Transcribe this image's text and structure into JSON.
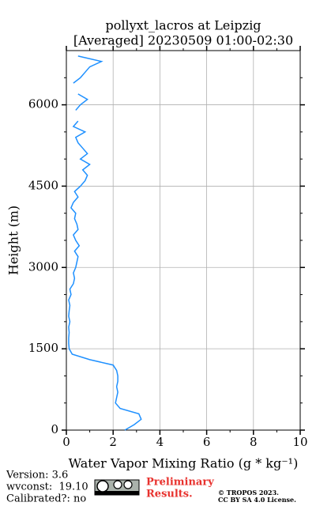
{
  "chart_data": {
    "type": "line",
    "title_line1": "pollyxt_lacros at Leipzig",
    "title_line2": "[Averaged] 20230509 01:00-02:30",
    "xlabel": "Water Vapor Mixing Ratio (g * kg⁻¹)",
    "ylabel": "Height (m)",
    "xlim": [
      0,
      10
    ],
    "xticks": [
      0,
      2,
      4,
      6,
      8,
      10
    ],
    "xminorticks": [
      1,
      3,
      5,
      7,
      9
    ],
    "ylim": [
      0,
      7000
    ],
    "yticks": [
      0,
      1500,
      3000,
      4500,
      6000
    ],
    "yminorticks": [
      500,
      1000,
      2000,
      2500,
      3500,
      4000,
      5000,
      5500,
      6500
    ],
    "grid": true,
    "heights": [
      0,
      100,
      200,
      300,
      400,
      500,
      600,
      700,
      800,
      900,
      1000,
      1100,
      1200,
      1300,
      1400,
      1500,
      1600,
      1700,
      1800,
      1900,
      2000,
      2100,
      2200,
      2300,
      2400,
      2500,
      2600,
      2700,
      2800,
      2900,
      3000,
      3100,
      3200,
      3300,
      3400,
      3500,
      3600,
      3700,
      3800,
      3900,
      4000,
      4100,
      4200,
      4300,
      4400,
      4500,
      4600,
      4700,
      4800,
      4900,
      5000,
      5100,
      5200,
      5300,
      5400,
      5500,
      5600,
      5700,
      5800,
      5900,
      6000,
      6100,
      6200,
      6300,
      6400,
      6500,
      6600,
      6700,
      6800,
      6900
    ],
    "series": [
      {
        "name": "water vapor mixing ratio",
        "color": "#1e90ff",
        "values": [
          2.5,
          2.9,
          3.2,
          3.1,
          2.3,
          2.1,
          2.15,
          2.2,
          2.15,
          2.2,
          2.2,
          2.15,
          2.0,
          1.0,
          0.25,
          0.12,
          0.1,
          0.1,
          0.12,
          0.1,
          0.15,
          0.1,
          0.12,
          0.15,
          0.1,
          0.2,
          0.15,
          0.3,
          0.35,
          0.3,
          0.4,
          0.45,
          0.5,
          0.35,
          0.55,
          0.4,
          0.3,
          0.5,
          0.45,
          0.35,
          0.4,
          0.2,
          0.3,
          0.5,
          0.35,
          0.6,
          0.8,
          0.9,
          0.7,
          1.0,
          0.6,
          0.9,
          0.7,
          0.5,
          0.4,
          0.8,
          0.3,
          0.5,
          null,
          0.4,
          0.6,
          0.9,
          0.5,
          null,
          0.3,
          0.6,
          0.8,
          1.0,
          1.5,
          0.5
        ]
      }
    ]
  },
  "footer": {
    "version": "Version: 3.6",
    "wvconst": "wvconst:  19.10",
    "calibrated": "Calibrated?: no",
    "preliminary_line1": "Preliminary",
    "preliminary_line2": "Results.",
    "copyright_line1": "© TROPOS 2023.",
    "copyright_line2": "CC BY SA 4.0 License."
  }
}
